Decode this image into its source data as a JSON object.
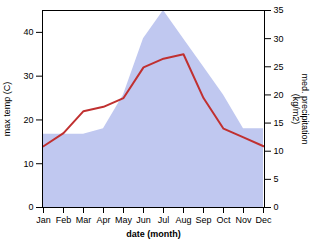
{
  "chart_data": {
    "type": "line",
    "xlabel": "date (month)",
    "ylabel": "max temp (C)",
    "y2label": "med. precipitation\n(kg/m2)",
    "categories": [
      "Jan",
      "Feb",
      "Mar",
      "Apr",
      "May",
      "Jun",
      "Jul",
      "Aug",
      "Sep",
      "Oct",
      "Nov",
      "Dec"
    ],
    "series": [
      {
        "type": "area",
        "axis": "y2",
        "color": "#c0c8f0",
        "values": [
          13,
          13,
          13,
          14,
          20,
          30,
          35,
          30,
          25,
          20,
          14,
          14
        ]
      },
      {
        "type": "line",
        "color": "#c03030",
        "values": [
          14,
          17,
          22,
          23,
          25,
          32,
          34,
          35,
          25,
          18,
          16,
          14
        ]
      }
    ],
    "ylim": [
      0,
      45
    ],
    "yticks": [
      0,
      10,
      20,
      30,
      40
    ],
    "y2lim": [
      0,
      35
    ],
    "y2ticks": [
      0,
      5,
      10,
      15,
      20,
      25,
      30,
      35
    ],
    "grid": false
  }
}
